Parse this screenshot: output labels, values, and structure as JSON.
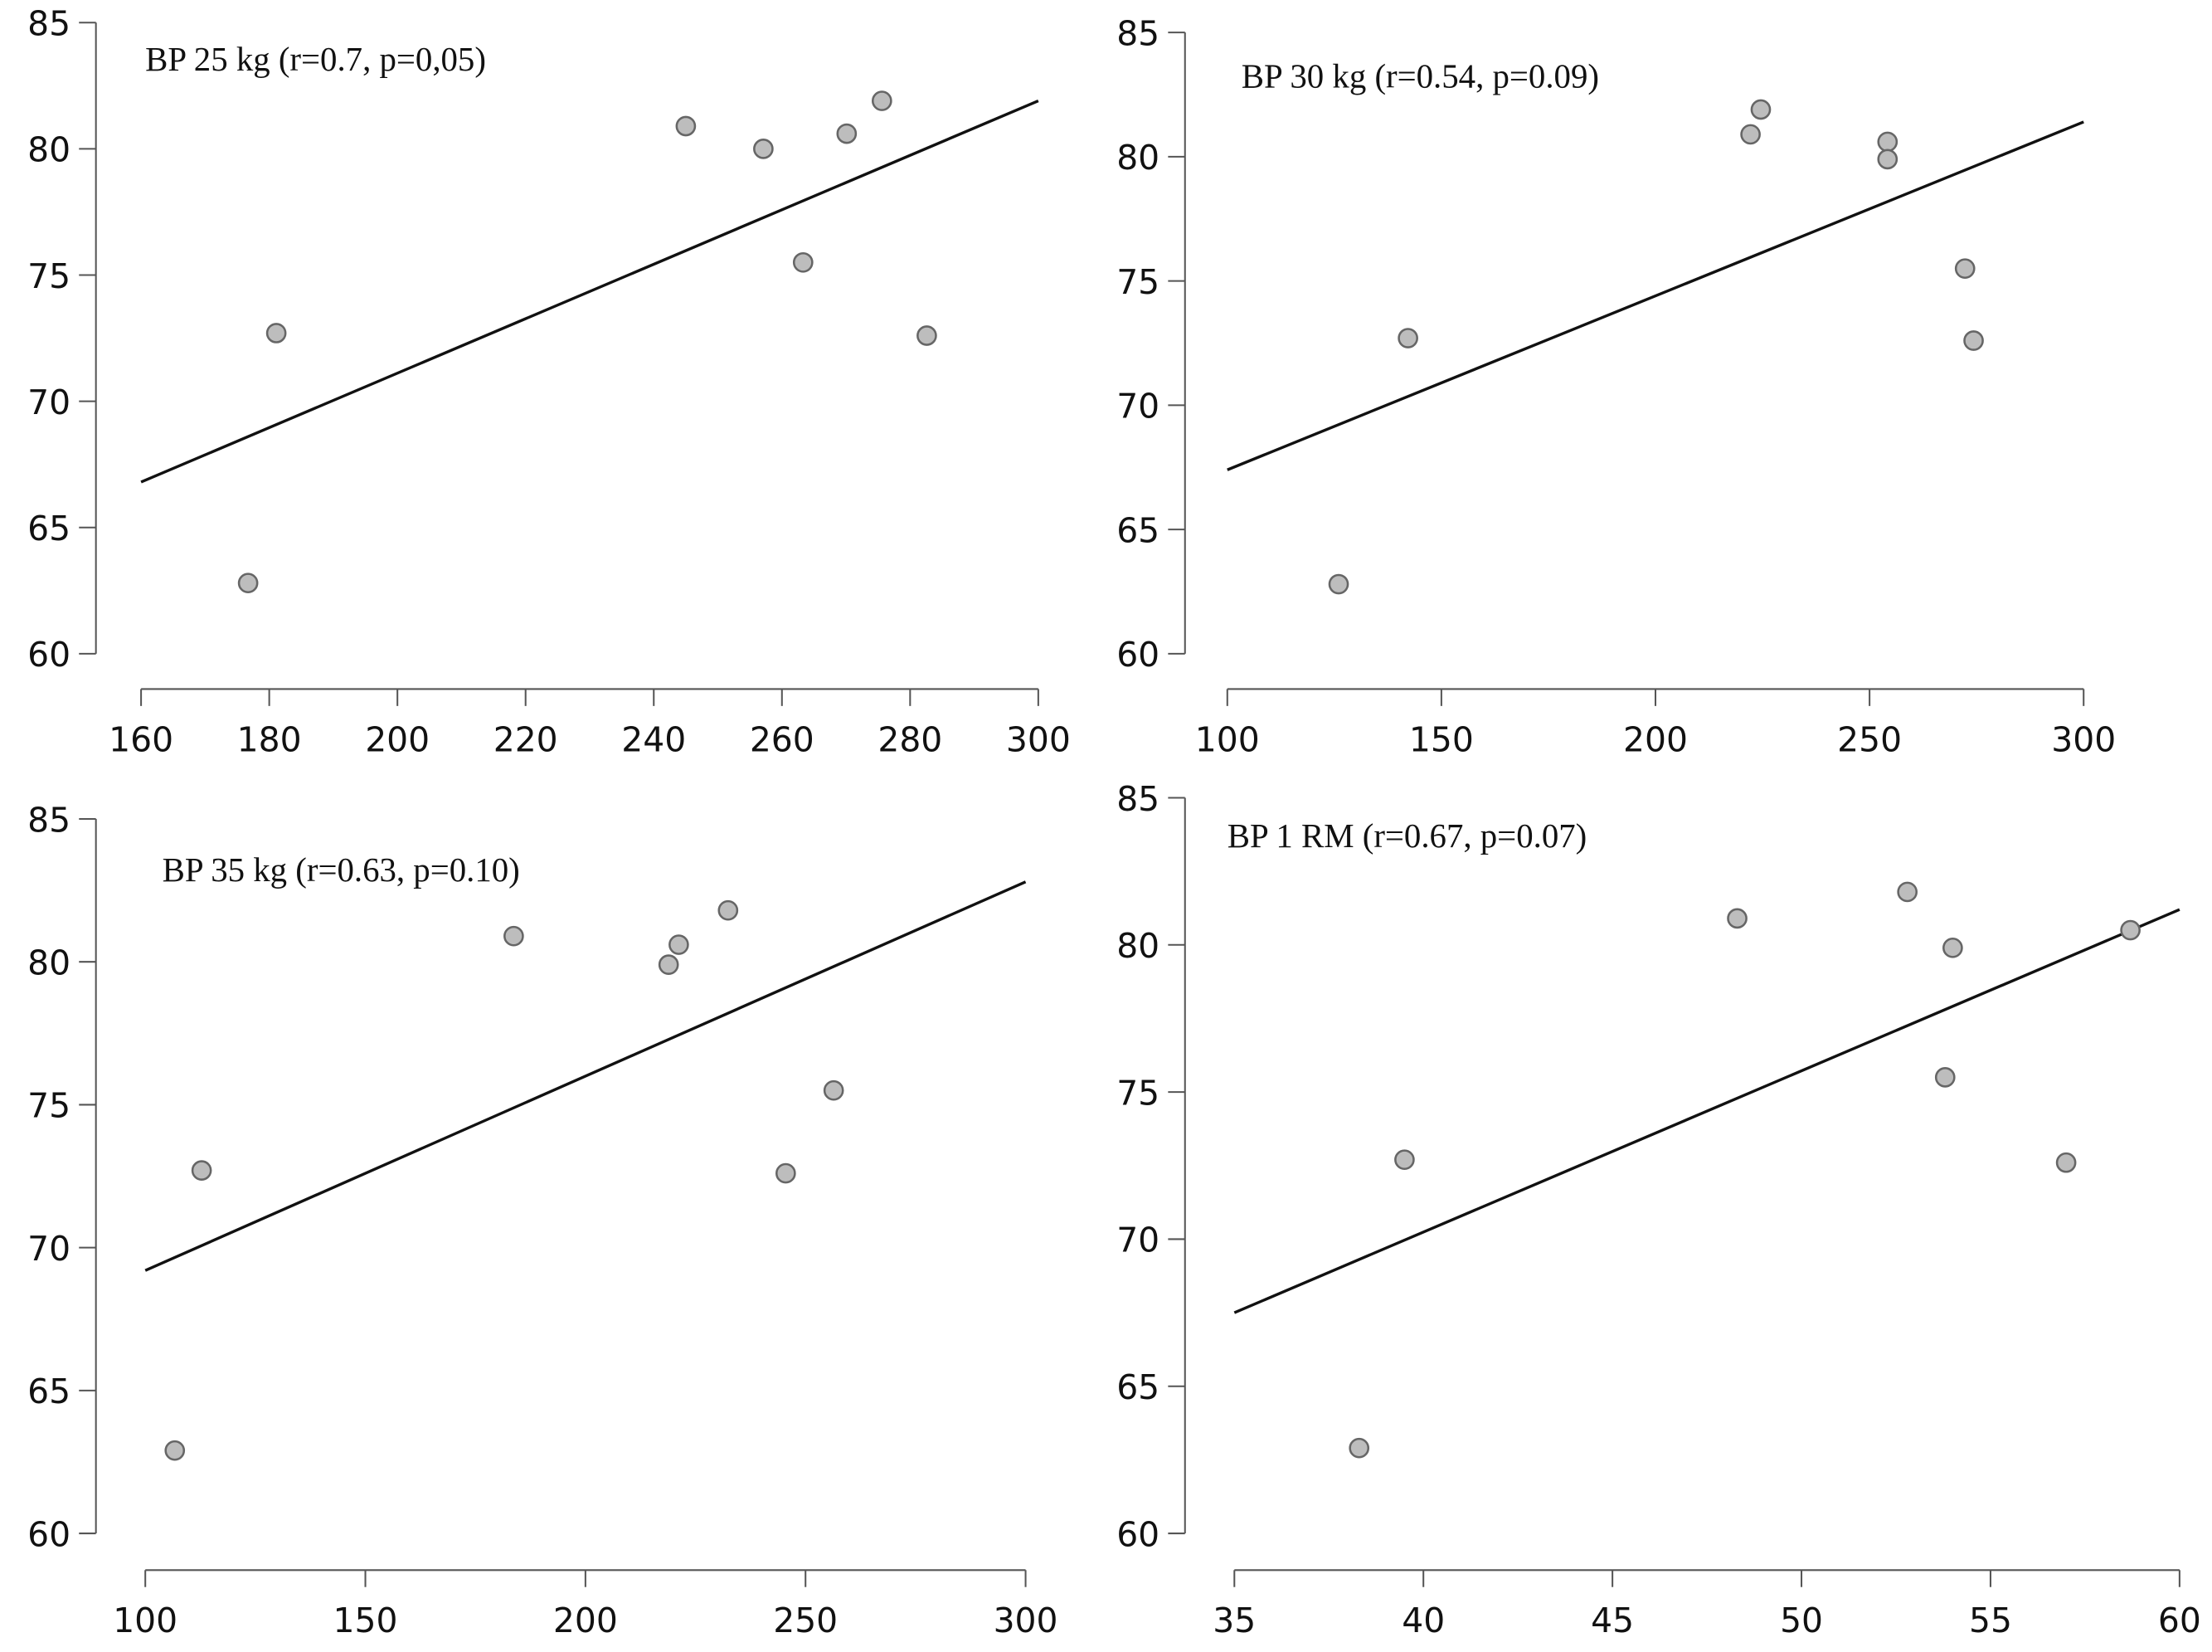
{
  "chart_data": [
    {
      "type": "scatter",
      "title": "BP 25 kg (r=0.7, p=0,05)",
      "xlabel": "",
      "ylabel": "",
      "xlim": [
        160,
        300
      ],
      "ylim": [
        60,
        85
      ],
      "x_ticks": [
        "160",
        "180",
        "200",
        "220",
        "240",
        "260",
        "280",
        "300"
      ],
      "y_ticks": [
        "60",
        "65",
        "70",
        "75",
        "80",
        "85"
      ],
      "grid": false,
      "points": [
        [
          176.7,
          62.8
        ],
        [
          181.1,
          72.7
        ],
        [
          245.0,
          80.9
        ],
        [
          257.1,
          80.0
        ],
        [
          263.3,
          75.5
        ],
        [
          270.1,
          80.6
        ],
        [
          275.6,
          81.9
        ],
        [
          282.6,
          72.6
        ]
      ],
      "fit_line": [
        [
          160,
          66.8
        ],
        [
          300,
          81.9
        ]
      ],
      "colors": {
        "marker_fill": "#bdbdbd",
        "marker_edge": "#666666",
        "line": "#111111"
      }
    },
    {
      "type": "scatter",
      "title": "BP 30 kg (r=0.54, p=0.09)",
      "xlabel": "",
      "ylabel": "",
      "xlim": [
        100,
        300
      ],
      "ylim": [
        60,
        85
      ],
      "x_ticks": [
        "100",
        "150",
        "200",
        "250",
        "300"
      ],
      "y_ticks": [
        "60",
        "65",
        "70",
        "75",
        "80",
        "85"
      ],
      "grid": false,
      "points": [
        [
          126.0,
          62.8
        ],
        [
          142.2,
          72.7
        ],
        [
          222.2,
          80.9
        ],
        [
          224.6,
          81.9
        ],
        [
          254.2,
          80.6
        ],
        [
          254.2,
          79.9
        ],
        [
          272.3,
          75.5
        ],
        [
          274.3,
          72.6
        ]
      ],
      "fit_line": [
        [
          100,
          67.4
        ],
        [
          300,
          81.4
        ]
      ],
      "colors": {
        "marker_fill": "#bdbdbd",
        "marker_edge": "#666666",
        "line": "#111111"
      }
    },
    {
      "type": "scatter",
      "title": "BP 35 kg (r=0.63, p=0.10)",
      "xlabel": "",
      "ylabel": "",
      "xlim": [
        100,
        300
      ],
      "ylim": [
        60,
        85
      ],
      "x_ticks": [
        "100",
        "150",
        "200",
        "250",
        "300"
      ],
      "y_ticks": [
        "60",
        "65",
        "70",
        "75",
        "80",
        "85"
      ],
      "grid": false,
      "points": [
        [
          106.7,
          62.9
        ],
        [
          112.8,
          72.7
        ],
        [
          183.7,
          80.9
        ],
        [
          218.9,
          79.9
        ],
        [
          221.2,
          80.6
        ],
        [
          232.4,
          81.8
        ],
        [
          245.5,
          72.6
        ],
        [
          256.4,
          75.5
        ]
      ],
      "fit_line": [
        [
          100,
          69.2
        ],
        [
          300,
          82.8
        ]
      ],
      "colors": {
        "marker_fill": "#bdbdbd",
        "marker_edge": "#666666",
        "line": "#111111"
      }
    },
    {
      "type": "scatter",
      "title": "BP 1 RM (r=0.67, p=0.07)",
      "xlabel": "",
      "ylabel": "",
      "xlim": [
        35,
        60
      ],
      "ylim": [
        60,
        85
      ],
      "x_ticks": [
        "35",
        "40",
        "45",
        "50",
        "55",
        "60"
      ],
      "y_ticks": [
        "60",
        "65",
        "70",
        "75",
        "80",
        "85"
      ],
      "grid": false,
      "points": [
        [
          38.3,
          62.9
        ],
        [
          39.5,
          72.7
        ],
        [
          48.3,
          80.9
        ],
        [
          52.8,
          81.8
        ],
        [
          54.0,
          79.9
        ],
        [
          53.8,
          75.5
        ],
        [
          57.0,
          72.6
        ],
        [
          58.7,
          80.5
        ]
      ],
      "fit_line": [
        [
          35,
          67.5
        ],
        [
          60,
          81.2
        ]
      ],
      "colors": {
        "marker_fill": "#bdbdbd",
        "marker_edge": "#666666",
        "line": "#111111"
      }
    }
  ]
}
